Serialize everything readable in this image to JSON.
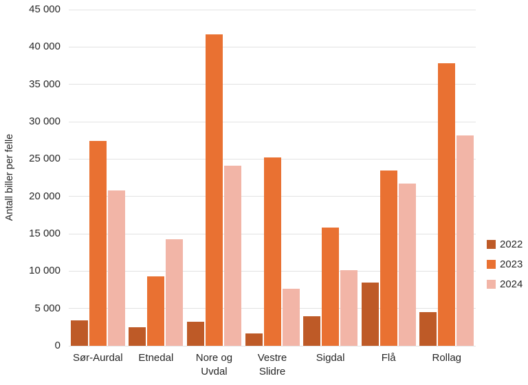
{
  "chart_data": {
    "type": "bar",
    "title": "",
    "xlabel": "",
    "ylabel": "Antall biller per felle",
    "categories": [
      "Sør-Aurdal",
      "Etnedal",
      "Nore og\nUvdal",
      "Vestre\nSlidre",
      "Sigdal",
      "Flå",
      "Rollag"
    ],
    "series": [
      {
        "name": "2022",
        "color": "#BE5A27",
        "values": [
          3400,
          2500,
          3200,
          1700,
          4000,
          8500,
          4500
        ]
      },
      {
        "name": "2023",
        "color": "#E97132",
        "values": [
          27400,
          9300,
          41700,
          25200,
          15800,
          23500,
          37800
        ]
      },
      {
        "name": "2024",
        "color": "#F2B5A7",
        "values": [
          20800,
          14300,
          24100,
          7600,
          10100,
          21700,
          28200
        ]
      }
    ],
    "ylim": [
      0,
      45000
    ],
    "ytick_step": 5000,
    "ytick_labels": [
      "45 000",
      "40 000",
      "35 000",
      "30 000",
      "25 000",
      "20 000",
      "15 000",
      "10 000",
      "5 000",
      "0"
    ],
    "grid": "horizontal",
    "legend_position": "right"
  },
  "colors": {
    "background": "#FFFFFF",
    "gridline": "#E2E2E2",
    "text": "#262626"
  }
}
